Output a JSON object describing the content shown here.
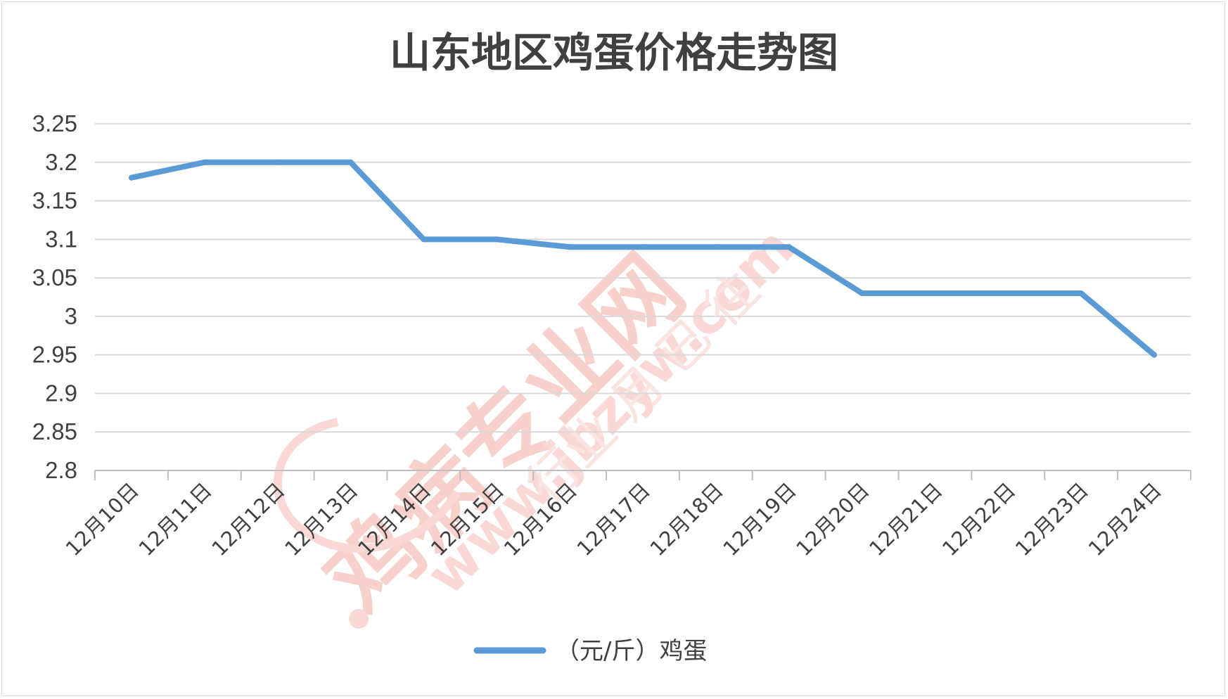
{
  "chart_data": {
    "type": "line",
    "title": "山东地区鸡蛋价格走势图",
    "categories": [
      "12月10日",
      "12月11日",
      "12月12日",
      "12月13日",
      "12月14日",
      "12月15日",
      "12月16日",
      "12月17日",
      "12月18日",
      "12月19日",
      "12月20日",
      "12月21日",
      "12月22日",
      "12月23日",
      "12月24日"
    ],
    "series": [
      {
        "name": "（元/斤）鸡蛋",
        "color": "#5b9bd5",
        "values": [
          3.18,
          3.2,
          3.2,
          3.2,
          3.1,
          3.1,
          3.09,
          3.09,
          3.09,
          3.09,
          3.03,
          3.03,
          3.03,
          3.03,
          2.95
        ]
      }
    ],
    "ylim": [
      2.8,
      3.25
    ],
    "yticks": [
      "2.8",
      "2.85",
      "2.9",
      "2.95",
      "3",
      "3.05",
      "3.1",
      "3.15",
      "3.2",
      "3.25"
    ],
    "xlabel": "",
    "ylabel": "",
    "grid": true,
    "legend": "bottom"
  },
  "watermark": {
    "main": "鸡病专业网",
    "url": "www.jbzyw.com",
    "slogan": "行业 月 已 往",
    "color": "#f4b7b2"
  }
}
